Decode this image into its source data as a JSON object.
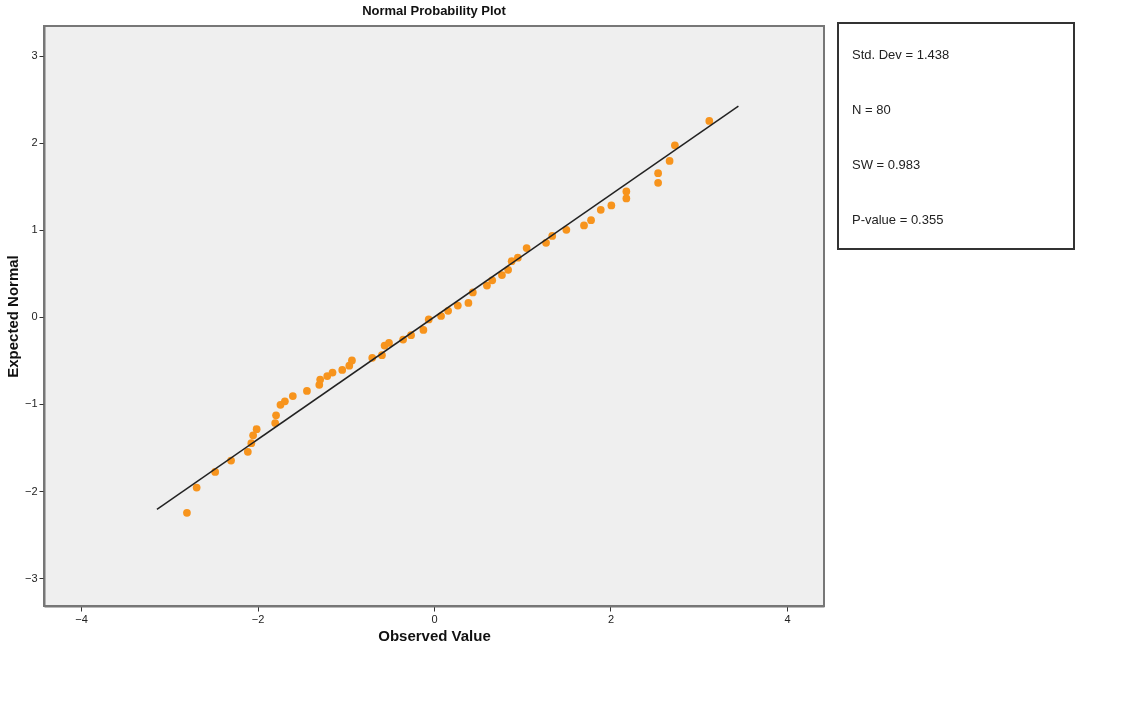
{
  "chart_data": {
    "type": "scatter",
    "title": "Normal Probability Plot",
    "xlabel": "Observed Value",
    "ylabel": "Expected Normal",
    "xlim": [
      -4.42,
      4.42
    ],
    "ylim": [
      -3.32,
      3.34
    ],
    "xticks": [
      -4,
      -2,
      0,
      2,
      4
    ],
    "yticks": [
      -3,
      -2,
      -1,
      0,
      1,
      2,
      3
    ],
    "grid": false,
    "marker": "circle",
    "series": [
      {
        "color": "#f7941d",
        "x": [
          -2.8,
          -2.69,
          -2.48,
          -2.3,
          -2.11,
          -2.07,
          -2.05,
          -2.01,
          -1.8,
          -1.79,
          -1.74,
          -1.69,
          -1.6,
          -1.44,
          -1.3,
          -1.29,
          -1.21,
          -1.15,
          -1.04,
          -0.96,
          -0.93,
          -0.7,
          -0.59,
          -0.56,
          -0.51,
          -0.35,
          -0.26,
          -0.12,
          -0.06,
          0.08,
          0.16,
          0.27,
          0.39,
          0.44,
          0.6,
          0.66,
          0.77,
          0.84,
          0.88,
          0.95,
          1.05,
          1.27,
          1.34,
          1.5,
          1.7,
          1.78,
          1.89,
          2.01,
          2.18,
          2.18,
          2.54,
          2.54,
          2.67,
          2.73,
          3.12
        ],
        "values": [
          -2.25,
          -1.96,
          -1.78,
          -1.65,
          -1.55,
          -1.45,
          -1.36,
          -1.29,
          -1.22,
          -1.13,
          -1.01,
          -0.97,
          -0.91,
          -0.85,
          -0.78,
          -0.72,
          -0.68,
          -0.64,
          -0.61,
          -0.56,
          -0.5,
          -0.47,
          -0.44,
          -0.33,
          -0.3,
          -0.26,
          -0.21,
          -0.15,
          -0.03,
          0.01,
          0.07,
          0.13,
          0.16,
          0.28,
          0.36,
          0.42,
          0.48,
          0.54,
          0.64,
          0.68,
          0.79,
          0.85,
          0.93,
          1.0,
          1.05,
          1.11,
          1.23,
          1.28,
          1.36,
          1.44,
          1.54,
          1.65,
          1.79,
          1.97,
          2.25
        ]
      },
      {
        "type": "line",
        "marker": "none",
        "color": "#222222",
        "x": [
          -3.14,
          3.45
        ],
        "values": [
          -2.21,
          2.42
        ]
      }
    ],
    "annotations": [
      "Std. Dev = 1.438",
      "N = 80",
      "SW = 0.983",
      "P-value = 0.355"
    ]
  }
}
